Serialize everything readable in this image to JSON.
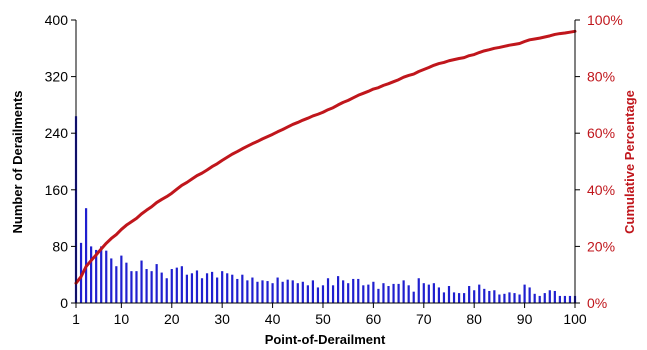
{
  "chart_data": {
    "type": "bar+line",
    "xlabel": "Point-of-Derailment",
    "ylabel_left": "Number of Derailments",
    "ylabel_right": "Cumulative Percentage",
    "x": [
      1,
      2,
      3,
      4,
      5,
      6,
      7,
      8,
      9,
      10,
      11,
      12,
      13,
      14,
      15,
      16,
      17,
      18,
      19,
      20,
      21,
      22,
      23,
      24,
      25,
      26,
      27,
      28,
      29,
      30,
      31,
      32,
      33,
      34,
      35,
      36,
      37,
      38,
      39,
      40,
      41,
      42,
      43,
      44,
      45,
      46,
      47,
      48,
      49,
      50,
      51,
      52,
      53,
      54,
      55,
      56,
      57,
      58,
      59,
      60,
      61,
      62,
      63,
      64,
      65,
      66,
      67,
      68,
      69,
      70,
      71,
      72,
      73,
      74,
      75,
      76,
      77,
      78,
      79,
      80,
      81,
      82,
      83,
      84,
      85,
      86,
      87,
      88,
      89,
      90,
      91,
      92,
      93,
      94,
      95,
      96,
      97,
      98,
      99,
      100
    ],
    "x_ticks": [
      "1",
      "10",
      "20",
      "30",
      "40",
      "50",
      "60",
      "70",
      "80",
      "90",
      "100"
    ],
    "x_tick_values": [
      1,
      10,
      20,
      30,
      40,
      50,
      60,
      70,
      80,
      90,
      100
    ],
    "ylim_left": [
      0,
      400
    ],
    "y_ticks_left": [
      "0",
      "80",
      "160",
      "240",
      "320",
      "400"
    ],
    "y_tick_values_left": [
      0,
      80,
      160,
      240,
      320,
      400
    ],
    "ylim_right": [
      0,
      100
    ],
    "y_ticks_right": [
      "0%",
      "20%",
      "40%",
      "60%",
      "80%",
      "100%"
    ],
    "y_tick_values_right": [
      0,
      20,
      40,
      60,
      80,
      100
    ],
    "series": [
      {
        "type": "bar",
        "axis": "left",
        "values": [
          264,
          85,
          134,
          80,
          75,
          80,
          74,
          63,
          52,
          67,
          57,
          45,
          45,
          60,
          48,
          45,
          55,
          43,
          35,
          48,
          50,
          52,
          40,
          42,
          46,
          35,
          42,
          44,
          36,
          45,
          42,
          40,
          34,
          40,
          32,
          36,
          30,
          32,
          31,
          28,
          36,
          30,
          33,
          32,
          28,
          30,
          25,
          32,
          22,
          25,
          35,
          25,
          38,
          32,
          28,
          34,
          34,
          25,
          26,
          30,
          20,
          28,
          24,
          27,
          27,
          32,
          25,
          16,
          35,
          28,
          26,
          28,
          22,
          15,
          24,
          15,
          14,
          14,
          24,
          18,
          26,
          20,
          17,
          18,
          12,
          13,
          15,
          14,
          12,
          26,
          22,
          13,
          10,
          14,
          18,
          17,
          10,
          10,
          10,
          10
        ],
        "color": "#1f1fcf"
      },
      {
        "type": "line",
        "axis": "right",
        "values": [
          7.0,
          9.3,
          12.9,
          15.0,
          17.0,
          19.1,
          21.1,
          22.8,
          24.2,
          26.0,
          27.5,
          28.7,
          29.9,
          31.5,
          32.8,
          34.0,
          35.5,
          36.6,
          37.6,
          38.8,
          40.2,
          41.6,
          42.6,
          43.8,
          45.0,
          45.9,
          47.0,
          48.2,
          49.2,
          50.4,
          51.5,
          52.6,
          53.5,
          54.5,
          55.4,
          56.3,
          57.1,
          58.0,
          58.8,
          59.6,
          60.5,
          61.3,
          62.2,
          63.1,
          63.8,
          64.6,
          65.3,
          66.1,
          66.7,
          67.4,
          68.3,
          69.0,
          70.0,
          70.9,
          71.6,
          72.5,
          73.4,
          74.1,
          74.8,
          75.6,
          76.1,
          76.9,
          77.5,
          78.2,
          78.9,
          79.8,
          80.4,
          80.9,
          81.8,
          82.5,
          83.2,
          84.0,
          84.6,
          85.0,
          85.6,
          86.0,
          86.4,
          86.7,
          87.4,
          87.8,
          88.5,
          89.1,
          89.5,
          90.0,
          90.3,
          90.7,
          91.1,
          91.4,
          91.7,
          92.4,
          93.0,
          93.3,
          93.6,
          94.0,
          94.4,
          94.9,
          95.2,
          95.4,
          95.7,
          96.0
        ],
        "color": "#c0161c"
      }
    ],
    "grid": false,
    "legend": false
  }
}
